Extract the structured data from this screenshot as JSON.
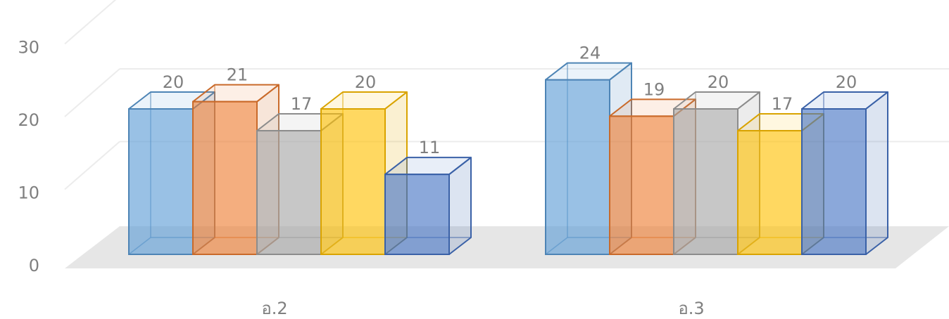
{
  "chart_data": {
    "type": "bar",
    "style": "3d-clustered-column",
    "categories": [
      "อ.2",
      "อ.3"
    ],
    "series": [
      {
        "values": [
          20,
          24
        ],
        "color": "#5b9bd5"
      },
      {
        "values": [
          21,
          19
        ],
        "color": "#ed7d31"
      },
      {
        "values": [
          17,
          20
        ],
        "color": "#a5a5a5"
      },
      {
        "values": [
          20,
          17
        ],
        "color": "#ffc000"
      },
      {
        "values": [
          11,
          20
        ],
        "color": "#4472c4"
      }
    ],
    "data_labels": [
      [
        "20",
        "24"
      ],
      [
        "21",
        "19"
      ],
      [
        "17",
        "20"
      ],
      [
        "20",
        "17"
      ],
      [
        "11",
        "20"
      ]
    ],
    "yticks": [
      "0",
      "10",
      "20",
      "30"
    ],
    "ylim": [
      0,
      30
    ],
    "title": "",
    "xlabel": "",
    "ylabel": "",
    "grid": true,
    "legend": "none"
  }
}
